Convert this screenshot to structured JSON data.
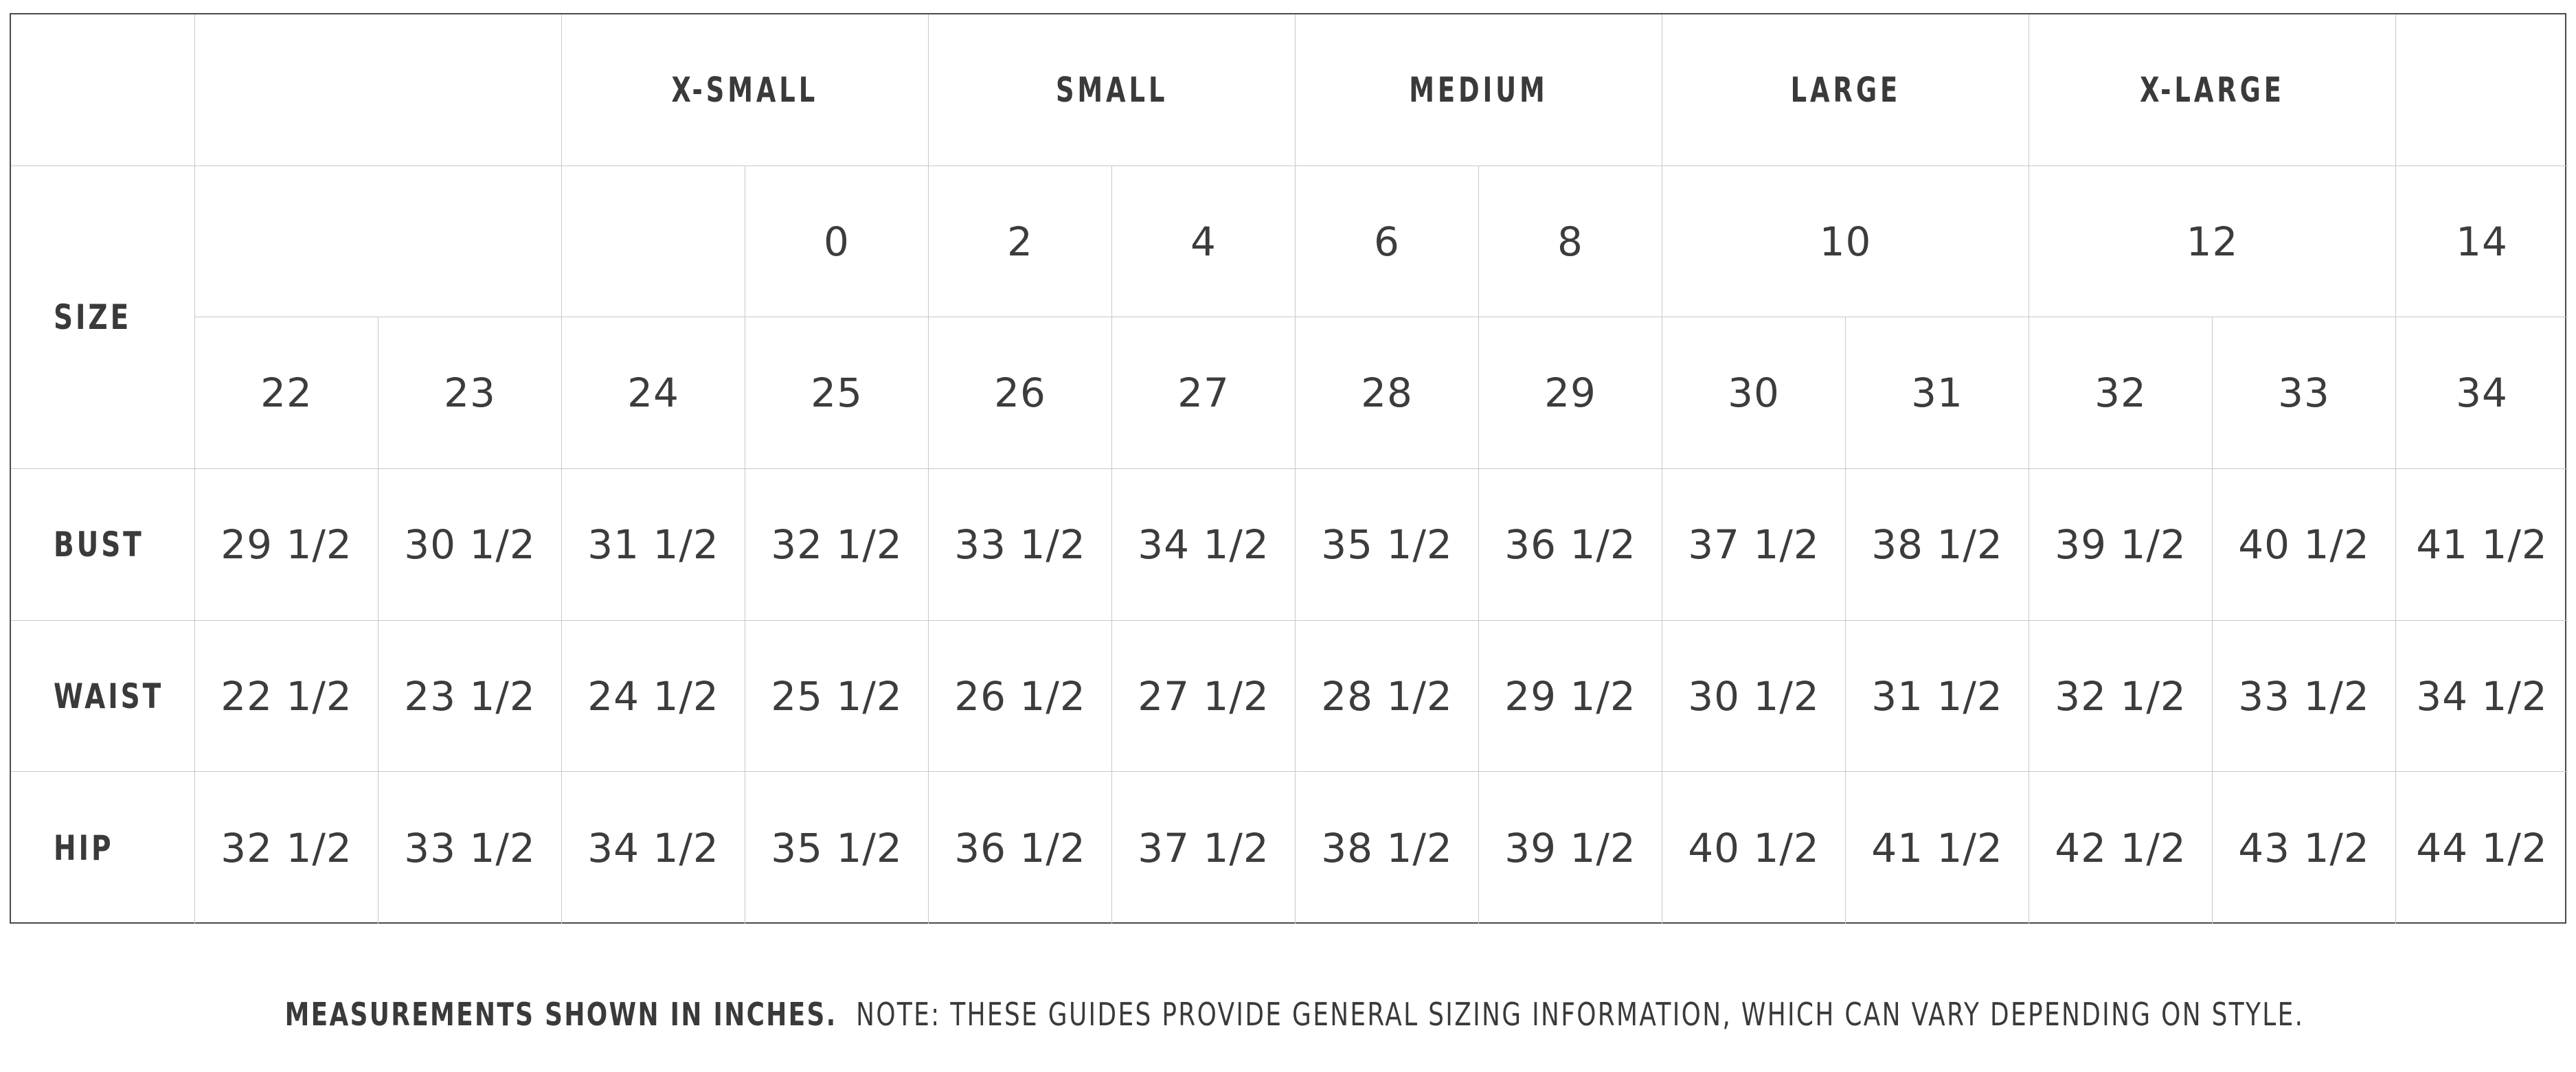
{
  "groups": [
    "X-SMALL",
    "SMALL",
    "MEDIUM",
    "LARGE",
    "X-LARGE"
  ],
  "size_label": "SIZE",
  "numeric_sizes": {
    "row1": [
      "0",
      "2",
      "4",
      "6",
      "8",
      "10",
      "12",
      "14"
    ],
    "row2": [
      "22",
      "23",
      "24",
      "25",
      "26",
      "27",
      "28",
      "29",
      "30",
      "31",
      "32",
      "33",
      "34"
    ]
  },
  "measurements": [
    {
      "label": "BUST",
      "values": [
        "29 1/2",
        "30 1/2",
        "31 1/2",
        "32 1/2",
        "33 1/2",
        "34 1/2",
        "35 1/2",
        "36 1/2",
        "37 1/2",
        "38 1/2",
        "39 1/2",
        "40 1/2",
        "41 1/2"
      ]
    },
    {
      "label": "WAIST",
      "values": [
        "22 1/2",
        "23 1/2",
        "24 1/2",
        "25 1/2",
        "26 1/2",
        "27 1/2",
        "28 1/2",
        "29 1/2",
        "30 1/2",
        "31 1/2",
        "32 1/2",
        "33 1/2",
        "34 1/2"
      ]
    },
    {
      "label": "HIP",
      "values": [
        "32 1/2",
        "33 1/2",
        "34 1/2",
        "35 1/2",
        "36 1/2",
        "37 1/2",
        "38 1/2",
        "39 1/2",
        "40 1/2",
        "41 1/2",
        "42 1/2",
        "43 1/2",
        "44 1/2"
      ]
    }
  ],
  "footnote": {
    "bold": "MEASUREMENTS SHOWN IN INCHES.",
    "text": "NOTE: THESE GUIDES PROVIDE GENERAL SIZING INFORMATION, WHICH CAN VARY DEPENDING ON STYLE."
  },
  "colors": {
    "text": "#3a3a3a",
    "grid_line": "#c8c8c8",
    "border": "#4a4a4a",
    "background": "#ffffff"
  }
}
